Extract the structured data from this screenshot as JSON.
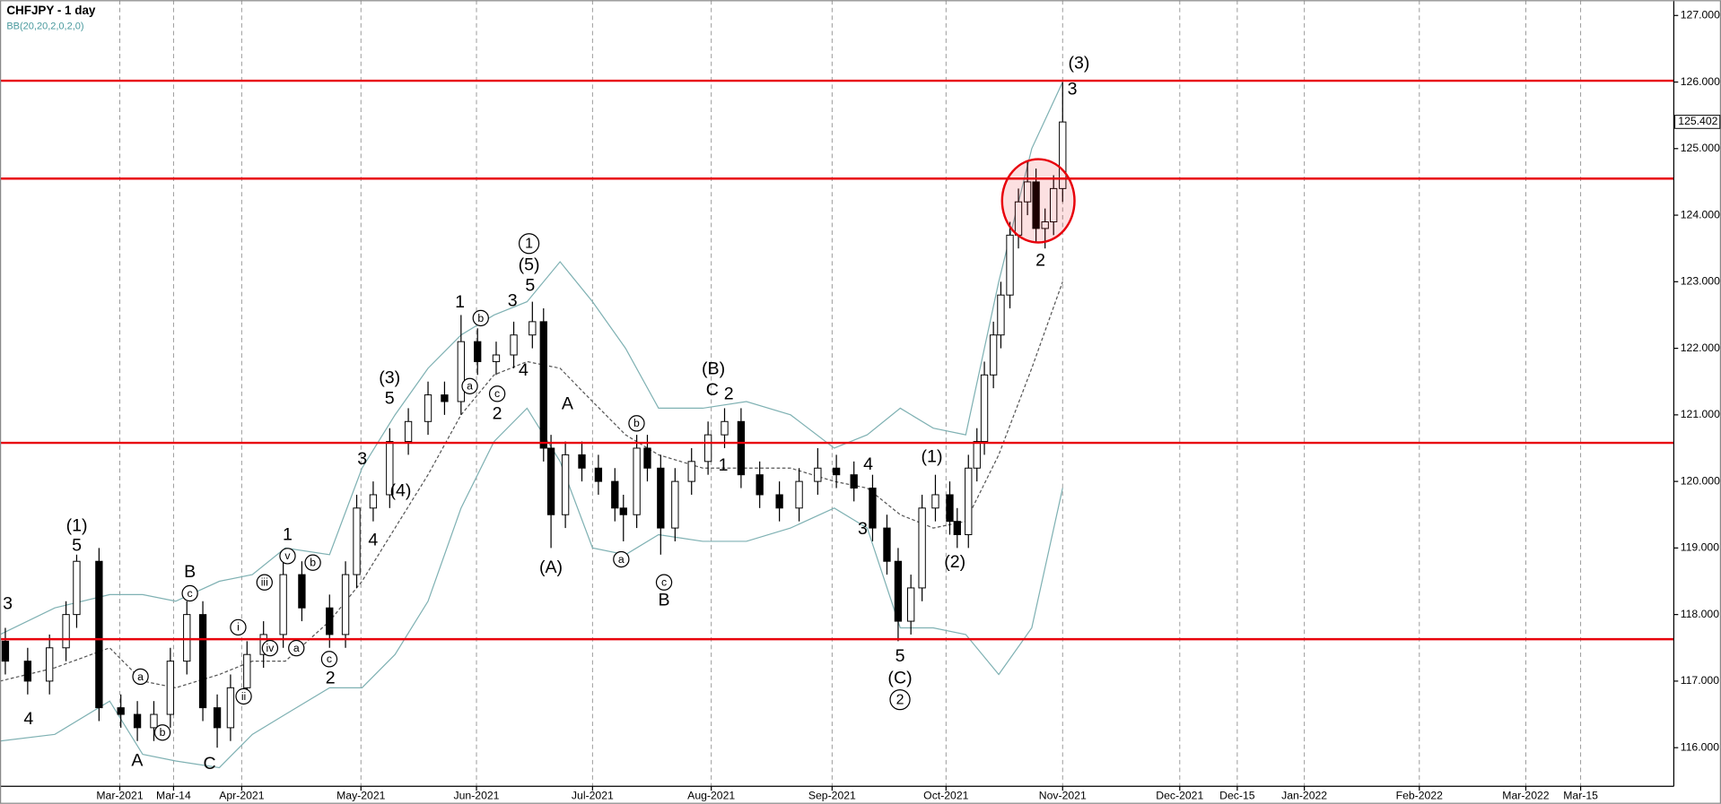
{
  "chart_data": {
    "type": "candlestick",
    "title": "CHFJPY - 1 day",
    "subtitle": "BB(20,20,2,0,2,0)",
    "x": [
      1.0,
      5.2,
      9.3,
      12.4,
      14.4,
      18.6,
      22.7,
      25.8,
      28.9,
      32.0,
      35.1,
      38.1,
      40.8,
      43.3,
      46.4,
      49.5,
      53.2,
      56.7,
      61.9,
      64.9,
      67.0,
      70.1,
      73.2,
      76.7,
      80.4,
      83.5,
      86.6,
      89.7,
      93.2,
      96.5,
      100.0,
      102.1,
      103.5,
      106.2,
      109.3,
      112.4,
      115.5,
      117.1,
      119.6,
      121.6,
      124.1,
      126.8,
      129.9,
      133.0,
      136.1,
      139.2,
      142.7,
      146.4,
      150.1,
      153.6,
      157.1,
      160.4,
      163.9,
      166.6,
      168.7,
      171.1,
      173.2,
      175.7,
      178.4,
      179.8,
      181.9,
      183.5,
      184.9,
      186.6,
      188.0,
      189.7,
      191.3,
      193.0,
      194.6,
      196.3,
      197.9,
      199.6
    ],
    "open": [
      117.6,
      117.3,
      117.0,
      117.5,
      118.0,
      118.8,
      116.6,
      116.5,
      116.3,
      116.5,
      117.3,
      118.0,
      116.6,
      116.3,
      116.9,
      117.4,
      117.7,
      118.6,
      118.1,
      117.7,
      118.6,
      119.6,
      119.8,
      120.6,
      120.9,
      121.3,
      121.2,
      122.1,
      121.8,
      121.9,
      122.2,
      122.4,
      120.5,
      119.5,
      120.4,
      120.2,
      120.0,
      119.6,
      119.5,
      120.5,
      120.2,
      119.3,
      120.0,
      120.3,
      120.7,
      120.9,
      120.1,
      119.8,
      119.6,
      120.0,
      120.2,
      120.1,
      119.9,
      119.3,
      118.8,
      117.9,
      118.4,
      119.6,
      119.8,
      119.4,
      119.2,
      120.2,
      120.6,
      121.6,
      122.2,
      122.8,
      123.7,
      124.2,
      124.5,
      123.8,
      123.9,
      124.4
    ],
    "high": [
      117.8,
      117.5,
      117.7,
      118.2,
      118.9,
      119.0,
      116.8,
      116.7,
      116.7,
      117.5,
      118.2,
      118.2,
      116.8,
      117.1,
      117.6,
      117.9,
      118.8,
      118.8,
      118.3,
      118.8,
      119.8,
      120.0,
      120.8,
      121.1,
      121.5,
      121.5,
      122.5,
      122.3,
      122.1,
      122.4,
      122.7,
      122.6,
      120.7,
      120.6,
      120.6,
      120.4,
      120.2,
      119.8,
      120.7,
      120.7,
      120.4,
      120.2,
      120.5,
      120.9,
      121.1,
      121.1,
      120.3,
      120.0,
      120.2,
      120.5,
      120.4,
      120.3,
      120.1,
      119.5,
      119.0,
      118.6,
      119.8,
      120.1,
      120.0,
      119.6,
      120.4,
      120.8,
      121.8,
      122.4,
      123.0,
      123.9,
      124.4,
      124.8,
      124.7,
      124.1,
      124.6,
      126.0
    ],
    "low": [
      117.1,
      116.8,
      116.8,
      117.3,
      117.8,
      116.4,
      116.3,
      116.1,
      116.1,
      116.3,
      117.1,
      116.4,
      116.0,
      116.1,
      116.7,
      117.2,
      117.5,
      117.9,
      117.5,
      117.5,
      118.4,
      119.4,
      119.6,
      120.4,
      120.7,
      121.0,
      121.0,
      121.6,
      121.6,
      121.7,
      122.0,
      120.3,
      119.0,
      119.3,
      120.0,
      119.8,
      119.4,
      119.1,
      119.3,
      120.0,
      118.9,
      119.1,
      119.8,
      120.1,
      120.5,
      119.9,
      119.6,
      119.4,
      119.4,
      119.8,
      119.9,
      119.7,
      119.1,
      118.6,
      117.6,
      117.7,
      118.2,
      119.4,
      119.2,
      119.0,
      119.0,
      120.0,
      120.4,
      121.4,
      122.0,
      122.6,
      123.5,
      124.0,
      123.6,
      123.5,
      123.7,
      124.2
    ],
    "close": [
      117.3,
      117.0,
      117.5,
      118.0,
      118.8,
      116.6,
      116.5,
      116.3,
      116.5,
      117.3,
      118.0,
      116.6,
      116.3,
      116.9,
      117.4,
      117.7,
      118.6,
      118.1,
      117.7,
      118.6,
      119.6,
      119.8,
      120.6,
      120.9,
      121.3,
      121.2,
      122.1,
      121.8,
      121.9,
      122.2,
      122.4,
      120.5,
      119.5,
      120.4,
      120.2,
      120.0,
      119.6,
      119.5,
      120.5,
      120.2,
      119.3,
      120.0,
      120.3,
      120.7,
      120.9,
      120.1,
      119.8,
      119.6,
      120.0,
      120.2,
      120.1,
      119.9,
      119.3,
      118.8,
      117.9,
      118.4,
      119.6,
      119.8,
      119.4,
      119.2,
      120.2,
      120.6,
      121.6,
      122.2,
      122.8,
      123.7,
      124.2,
      124.5,
      123.8,
      123.9,
      124.4,
      125.4
    ],
    "up_color": "#ffffff",
    "down_color": "#000000",
    "bollinger": {
      "color": "#7fb1b3",
      "x": [
        0,
        10.3,
        20.6,
        26.8,
        33.0,
        41.2,
        47.4,
        53.6,
        61.9,
        68.0,
        74.2,
        80.4,
        86.6,
        92.8,
        99.0,
        105.2,
        111.3,
        117.5,
        123.7,
        132.0,
        140.2,
        148.5,
        156.7,
        162.9,
        169.1,
        175.3,
        181.4,
        187.6,
        193.8,
        199.6
      ],
      "upper": [
        117.7,
        118.1,
        118.3,
        118.3,
        118.2,
        118.5,
        118.6,
        119.0,
        118.9,
        120.2,
        121.0,
        121.7,
        122.2,
        122.5,
        122.7,
        123.3,
        122.7,
        122.0,
        121.1,
        121.1,
        121.2,
        121.0,
        120.5,
        120.7,
        121.1,
        120.8,
        120.7,
        123.0,
        125.0,
        126.0
      ],
      "middle": [
        117.0,
        117.2,
        117.5,
        117.0,
        116.9,
        117.1,
        117.3,
        117.3,
        117.9,
        118.5,
        119.3,
        120.1,
        121.0,
        121.6,
        121.8,
        121.7,
        121.2,
        120.7,
        120.4,
        120.2,
        120.2,
        120.2,
        120.0,
        119.9,
        119.5,
        119.3,
        119.4,
        120.4,
        121.7,
        123.0
      ],
      "lower": [
        116.1,
        116.2,
        116.7,
        115.9,
        115.8,
        115.7,
        116.2,
        116.5,
        116.9,
        116.9,
        117.4,
        118.2,
        119.6,
        120.6,
        121.1,
        120.3,
        119.0,
        118.9,
        119.2,
        119.1,
        119.1,
        119.3,
        119.6,
        119.3,
        117.8,
        117.8,
        117.7,
        117.1,
        117.8,
        119.9
      ]
    },
    "levels": {
      "color": "#e8000b",
      "values": [
        126.02,
        124.55,
        120.58,
        117.63
      ]
    },
    "last_price": 125.402,
    "xlim": [
      0,
      314.4
    ],
    "ylim": [
      115.42,
      127.23
    ],
    "grid": true,
    "xticks": [
      {
        "value": 22.5,
        "label": "Mar-2021"
      },
      {
        "value": 32.6,
        "label": "Mar-14"
      },
      {
        "value": 45.4,
        "label": "Apr-2021"
      },
      {
        "value": 67.8,
        "label": "May-2021"
      },
      {
        "value": 89.5,
        "label": "Jun-2021"
      },
      {
        "value": 111.3,
        "label": "Jul-2021"
      },
      {
        "value": 133.6,
        "label": "Aug-2021"
      },
      {
        "value": 156.3,
        "label": "Sep-2021"
      },
      {
        "value": 177.7,
        "label": "Oct-2021"
      },
      {
        "value": 199.6,
        "label": "Nov-2021"
      },
      {
        "value": 221.6,
        "label": "Dec-2021"
      },
      {
        "value": 232.4,
        "label": "Dec-15"
      },
      {
        "value": 245.0,
        "label": "Jan-2022"
      },
      {
        "value": 266.6,
        "label": "Feb-2022"
      },
      {
        "value": 286.6,
        "label": "Mar-2022"
      },
      {
        "value": 296.9,
        "label": "Mar-15"
      }
    ],
    "yticks": [
      {
        "value": 116,
        "label": "116.000"
      },
      {
        "value": 117,
        "label": "117.000"
      },
      {
        "value": 118,
        "label": "118.000"
      },
      {
        "value": 119,
        "label": "119.000"
      },
      {
        "value": 120,
        "label": "120.000"
      },
      {
        "value": 121,
        "label": "121.000"
      },
      {
        "value": 122,
        "label": "122.000"
      },
      {
        "value": 123,
        "label": "123.000"
      },
      {
        "value": 124,
        "label": "124.000"
      },
      {
        "value": 125,
        "label": "125.000"
      },
      {
        "value": 126,
        "label": "126.000"
      },
      {
        "value": 127,
        "label": "127.000"
      }
    ],
    "annotations": [
      "3",
      "4",
      "(1)",
      "5",
      "B",
      "c",
      "a",
      "b",
      "A",
      "C",
      "i",
      "ii",
      "iii",
      "iv",
      "v",
      "1",
      "b",
      "a",
      "c",
      "2",
      "3",
      "4",
      "(4)",
      "(3)",
      "5",
      "1",
      "b",
      "a",
      "c",
      "2",
      "3",
      "4",
      "5",
      "(5)",
      "1",
      "A",
      "(A)",
      "b",
      "a",
      "c",
      "B",
      "(B)",
      "C",
      "2",
      "1",
      "4",
      "3",
      "5",
      "(C)",
      "2",
      "(1)",
      "(2)",
      "2",
      "3",
      "(3)"
    ]
  }
}
